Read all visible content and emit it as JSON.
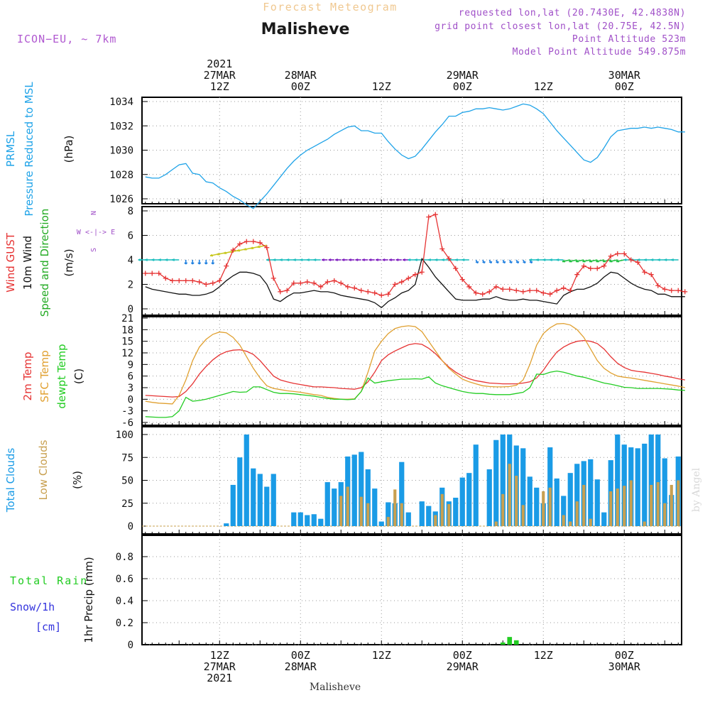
{
  "header": {
    "product": "Forecast Meteogram",
    "location": "Malisheve",
    "model": "ICON−EU, ~ 7km",
    "requested": "requested lon,lat (20.7430E, 42.4838N)",
    "grid_point": "grid point closest lon,lat (20.75E, 42.5N)",
    "point_alt": "Point Altitude 523m",
    "model_alt": "Model Point Altitude 549.875m",
    "footer": "Malisheve",
    "watermark": "by Angel"
  },
  "time_axis": {
    "top_labels": [
      {
        "h": 12,
        "lines": [
          "2021",
          "27MAR",
          "12Z"
        ]
      },
      {
        "h": 24,
        "lines": [
          "28MAR",
          "00Z"
        ]
      },
      {
        "h": 36,
        "lines": [
          "12Z"
        ]
      },
      {
        "h": 48,
        "lines": [
          "29MAR",
          "00Z"
        ]
      },
      {
        "h": 60,
        "lines": [
          "12Z"
        ]
      },
      {
        "h": 72,
        "lines": [
          "30MAR",
          "00Z"
        ]
      }
    ],
    "bottom_labels": [
      {
        "h": 12,
        "lines": [
          "12Z",
          "27MAR",
          "2021"
        ]
      },
      {
        "h": 24,
        "lines": [
          "00Z",
          "28MAR"
        ]
      },
      {
        "h": 36,
        "lines": [
          "12Z"
        ]
      },
      {
        "h": 48,
        "lines": [
          "00Z",
          "29MAR"
        ]
      },
      {
        "h": 60,
        "lines": [
          "12Z"
        ]
      },
      {
        "h": 72,
        "lines": [
          "00Z",
          "30MAR"
        ]
      }
    ]
  },
  "labels": {
    "p1": [
      "PRMSL",
      "Pressure Reduced to MSL",
      "(hPa)"
    ],
    "p2": [
      "Wind GUST",
      "10m Wind",
      "Speed and Direction",
      "(m/s)"
    ],
    "p2_compass": [
      "N",
      "W <-|-> E",
      "S"
    ],
    "p3": [
      "2m Temp",
      "SFC Temp",
      "dewpt Temp",
      "(C)"
    ],
    "p4": [
      "Total Clouds",
      "Low Clouds",
      "(%)"
    ],
    "p5": [
      "Total Rain",
      "Snow/1h",
      "[cm]",
      "1hr Precip (mm)"
    ]
  },
  "chart_data": [
    {
      "type": "line",
      "panel": "pressure",
      "ylabel": "PRMSL Pressure Reduced to MSL (hPa)",
      "yticks": [
        1026,
        1028,
        1030,
        1032,
        1034
      ],
      "ylim": [
        1025.0,
        1034.3
      ],
      "x_start_hour": 1,
      "series": [
        {
          "name": "PRMSL",
          "color": "#1fa3e8",
          "values": [
            1027.8,
            1027.7,
            1027.7,
            1028.0,
            1028.4,
            1028.8,
            1028.9,
            1028.1,
            1028.0,
            1027.4,
            1027.3,
            1026.9,
            1026.6,
            1026.2,
            1025.9,
            1025.5,
            1025.2,
            1025.8,
            1026.4,
            1027.1,
            1027.8,
            1028.5,
            1029.1,
            1029.6,
            1030.0,
            1030.3,
            1030.6,
            1030.9,
            1031.3,
            1031.6,
            1031.9,
            1032.0,
            1031.6,
            1031.6,
            1031.4,
            1031.4,
            1030.7,
            1030.1,
            1029.6,
            1029.3,
            1029.5,
            1030.1,
            1030.8,
            1031.5,
            1032.1,
            1032.8,
            1032.8,
            1033.1,
            1033.2,
            1033.4,
            1033.4,
            1033.5,
            1033.4,
            1033.3,
            1033.4,
            1033.6,
            1033.8,
            1033.7,
            1033.4,
            1033.0,
            1032.3,
            1031.6,
            1031.0,
            1030.4,
            1029.8,
            1029.2,
            1029.0,
            1029.4,
            1030.2,
            1031.1,
            1031.6,
            1031.7,
            1031.8,
            1031.8,
            1031.9,
            1031.8,
            1031.9,
            1031.8,
            1031.7,
            1031.5,
            1031.5
          ]
        }
      ]
    },
    {
      "type": "line",
      "panel": "wind",
      "ylabel": "Wind GUST / 10m Wind Speed and Direction (m/s)",
      "yticks": [
        0,
        2,
        4,
        6,
        8
      ],
      "ylim": [
        -0.2,
        8.2
      ],
      "x_start_hour": 1,
      "series": [
        {
          "name": "Wind GUST",
          "color": "#e63333",
          "marker": "+",
          "values": [
            2.9,
            2.9,
            2.9,
            2.5,
            2.3,
            2.3,
            2.3,
            2.3,
            2.2,
            2.0,
            2.1,
            2.3,
            3.5,
            4.8,
            5.3,
            5.5,
            5.5,
            5.4,
            5.0,
            2.5,
            1.4,
            1.5,
            2.1,
            2.1,
            2.2,
            2.1,
            1.8,
            2.2,
            2.3,
            2.1,
            1.8,
            1.7,
            1.5,
            1.4,
            1.3,
            1.1,
            1.2,
            2.0,
            2.2,
            2.5,
            2.8,
            3.0,
            7.5,
            7.7,
            4.9,
            4.1,
            3.3,
            2.4,
            1.8,
            1.3,
            1.2,
            1.4,
            1.8,
            1.6,
            1.6,
            1.5,
            1.4,
            1.5,
            1.5,
            1.3,
            1.2,
            1.5,
            1.7,
            1.5,
            2.8,
            3.5,
            3.3,
            3.3,
            3.5,
            4.3,
            4.5,
            4.5,
            4.0,
            3.8,
            3.0,
            2.8,
            1.9,
            1.6,
            1.5,
            1.5,
            1.4
          ]
        },
        {
          "name": "10m Wind",
          "color": "#111111",
          "values": [
            1.8,
            1.6,
            1.5,
            1.4,
            1.3,
            1.2,
            1.2,
            1.1,
            1.1,
            1.2,
            1.4,
            1.8,
            2.3,
            2.7,
            3.0,
            3.0,
            2.9,
            2.7,
            2.0,
            0.8,
            0.6,
            1.0,
            1.3,
            1.3,
            1.4,
            1.5,
            1.4,
            1.4,
            1.3,
            1.1,
            1.0,
            0.9,
            0.8,
            0.7,
            0.5,
            0.1,
            0.6,
            0.9,
            1.3,
            1.5,
            2.0,
            4.1,
            3.4,
            2.6,
            2.0,
            1.4,
            0.8,
            0.7,
            0.7,
            0.7,
            0.8,
            0.8,
            1.0,
            0.8,
            0.7,
            0.7,
            0.8,
            0.7,
            0.7,
            0.6,
            0.5,
            0.4,
            1.1,
            1.4,
            1.6,
            1.6,
            1.8,
            2.1,
            2.6,
            3.0,
            2.9,
            2.5,
            2.1,
            1.8,
            1.6,
            1.5,
            1.2,
            1.2,
            1.0,
            1.0,
            1.0
          ]
        }
      ]
    },
    {
      "type": "line",
      "panel": "temperature",
      "ylabel": "2m Temp / SFC Temp / dewpt Temp (C)",
      "yticks": [
        -6,
        -3,
        0,
        3,
        6,
        9,
        12,
        15,
        18,
        21
      ],
      "ylim": [
        -6.5,
        21.5
      ],
      "x_start_hour": 1,
      "series": [
        {
          "name": "2m Temp",
          "color": "#e63333",
          "values": [
            1.0,
            0.9,
            0.8,
            0.7,
            0.6,
            0.7,
            2.0,
            4.0,
            6.5,
            8.5,
            10.2,
            11.5,
            12.3,
            12.7,
            12.8,
            12.4,
            11.6,
            10.0,
            8.0,
            6.0,
            5.0,
            4.5,
            4.1,
            3.8,
            3.5,
            3.2,
            3.2,
            3.1,
            3.0,
            2.8,
            2.7,
            2.6,
            3.0,
            4.5,
            7.0,
            10.0,
            11.5,
            12.5,
            13.3,
            14.1,
            14.4,
            14.2,
            13.2,
            11.8,
            10.0,
            8.3,
            7.0,
            6.0,
            5.3,
            4.8,
            4.5,
            4.2,
            4.1,
            4.0,
            4.0,
            4.0,
            4.2,
            4.5,
            5.5,
            7.5,
            10.0,
            12.2,
            13.5,
            14.4,
            15.0,
            15.2,
            15.0,
            14.4,
            13.0,
            11.0,
            9.3,
            8.2,
            7.5,
            7.2,
            7.0,
            6.7,
            6.4,
            6.0,
            5.7,
            5.3,
            5.0
          ]
        },
        {
          "name": "SFC Temp",
          "color": "#e0a030",
          "values": [
            -0.5,
            -0.8,
            -1.0,
            -1.1,
            -1.2,
            1.0,
            5.0,
            10.0,
            13.5,
            15.5,
            16.8,
            17.4,
            17.2,
            16.0,
            14.0,
            11.0,
            8.0,
            5.5,
            3.5,
            2.8,
            2.5,
            2.2,
            2.0,
            1.8,
            1.5,
            1.2,
            1.0,
            0.5,
            0.2,
            0.0,
            0.0,
            0.1,
            2.0,
            7.0,
            12.5,
            15.0,
            17.0,
            18.3,
            18.8,
            19.0,
            18.8,
            17.5,
            15.0,
            12.5,
            10.0,
            8.0,
            6.5,
            5.2,
            4.5,
            4.0,
            3.5,
            3.3,
            3.2,
            3.2,
            3.3,
            3.6,
            5.0,
            9.0,
            14.0,
            17.0,
            18.5,
            19.5,
            19.6,
            19.2,
            18.0,
            16.0,
            13.0,
            10.0,
            8.0,
            6.8,
            6.0,
            5.7,
            5.5,
            5.2,
            4.9,
            4.6,
            4.3,
            4.0,
            3.7,
            3.4,
            3.0
          ]
        },
        {
          "name": "dewpt Temp",
          "color": "#22cc22",
          "values": [
            -4.5,
            -4.6,
            -4.7,
            -4.7,
            -4.5,
            -3.0,
            0.5,
            -0.5,
            -0.3,
            0.0,
            0.5,
            1.0,
            1.5,
            2.0,
            1.8,
            1.9,
            3.2,
            3.2,
            2.5,
            1.8,
            1.5,
            1.5,
            1.4,
            1.2,
            1.0,
            0.8,
            0.5,
            0.2,
            0.0,
            0.0,
            -0.1,
            0.0,
            2.0,
            5.5,
            4.2,
            4.5,
            4.8,
            5.0,
            5.2,
            5.2,
            5.3,
            5.2,
            5.8,
            4.2,
            3.5,
            3.0,
            2.5,
            2.0,
            1.7,
            1.5,
            1.5,
            1.3,
            1.2,
            1.2,
            1.2,
            1.5,
            1.8,
            3.0,
            6.5,
            6.4,
            7.0,
            7.3,
            7.0,
            6.5,
            6.0,
            5.7,
            5.2,
            4.7,
            4.2,
            3.9,
            3.5,
            3.1,
            3.0,
            2.8,
            2.8,
            2.8,
            2.8,
            2.7,
            2.6,
            2.4,
            2.3
          ]
        }
      ]
    },
    {
      "type": "bar",
      "panel": "clouds",
      "ylabel": "Total Clouds / Low Clouds (%)",
      "yticks": [
        0,
        25,
        50,
        75,
        100
      ],
      "ylim": [
        -7,
        106
      ],
      "x_start_hour": 1,
      "series": [
        {
          "name": "Total Clouds",
          "color": "#1a9be6",
          "values": [
            0,
            0,
            0,
            0,
            0,
            0,
            0,
            0,
            0,
            0,
            0,
            0,
            3,
            45,
            75,
            100,
            63,
            57,
            43,
            57,
            0,
            0,
            15,
            15,
            12,
            13,
            8,
            48,
            41,
            48,
            76,
            78,
            81,
            62,
            41,
            5,
            26,
            25,
            70,
            15,
            0,
            27,
            22,
            16,
            42,
            27,
            31,
            53,
            58,
            89,
            0,
            62,
            94,
            100,
            100,
            88,
            85,
            54,
            42,
            25,
            86,
            52,
            33,
            58,
            68,
            71,
            73,
            51,
            15,
            72,
            100,
            89,
            86,
            85,
            90,
            100,
            100,
            74,
            34,
            76,
            0
          ]
        },
        {
          "name": "Low Clouds",
          "color": "#c8a050",
          "values": [
            0,
            0,
            0,
            0,
            0,
            0,
            0,
            0,
            0,
            0,
            0,
            0,
            0,
            0,
            0,
            0,
            0,
            0,
            0,
            0,
            0,
            0,
            0,
            0,
            0,
            0,
            0,
            0,
            0,
            33,
            43,
            0,
            32,
            25,
            0,
            0,
            10,
            40,
            25,
            0,
            0,
            0,
            0,
            12,
            35,
            24,
            0,
            0,
            0,
            0,
            0,
            0,
            5,
            35,
            68,
            55,
            23,
            0,
            0,
            38,
            42,
            0,
            12,
            5,
            27,
            45,
            8,
            0,
            0,
            38,
            41,
            44,
            50,
            0,
            5,
            45,
            48,
            25,
            45,
            50,
            0
          ]
        }
      ]
    },
    {
      "type": "bar",
      "panel": "precip",
      "ylabel": "1hr Precip (mm)",
      "yticks": [
        0.0,
        0.2,
        0.4,
        0.6,
        0.8
      ],
      "ylim": [
        0.0,
        0.96
      ],
      "series": [
        {
          "name": "Total Rain",
          "color": "#22cc22",
          "hours": [
            54,
            55,
            56
          ],
          "values": [
            0.02,
            0.07,
            0.04
          ]
        },
        {
          "name": "Snow/1h",
          "color": "#3333dd",
          "hours": [],
          "values": []
        }
      ]
    }
  ],
  "wind_arrows": {
    "note": "10m wind direction glyphs along the wind panel",
    "colors": [
      "#1fbfbf",
      "#2080e0",
      "#8020c0",
      "#c8c820",
      "#20c040"
    ]
  }
}
